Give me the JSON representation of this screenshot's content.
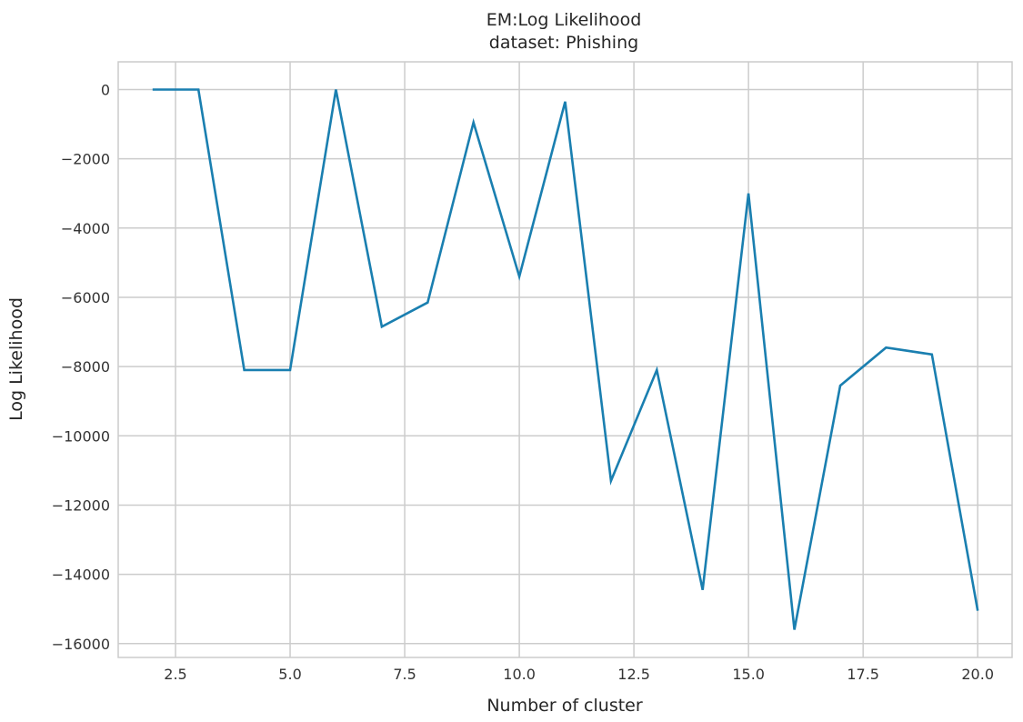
{
  "chart_data": {
    "type": "line",
    "title": "EM:Log Likelihood",
    "subtitle": "dataset: Phishing",
    "xlabel": "Number of cluster",
    "ylabel": "Log Likelihood",
    "xlim": [
      1.25,
      20.75
    ],
    "ylim": [
      -16400,
      800
    ],
    "xticks": [
      2.5,
      5.0,
      7.5,
      10.0,
      12.5,
      15.0,
      17.5,
      20.0
    ],
    "xtick_labels": [
      "2.5",
      "5.0",
      "7.5",
      "10.0",
      "12.5",
      "15.0",
      "17.5",
      "20.0"
    ],
    "yticks": [
      0,
      -2000,
      -4000,
      -6000,
      -8000,
      -10000,
      -12000,
      -14000,
      -16000
    ],
    "ytick_labels": [
      "0",
      "−2000",
      "−4000",
      "−6000",
      "−8000",
      "−10000",
      "−12000",
      "−14000",
      "−16000"
    ],
    "grid": true,
    "line_color": "#1a7fb0",
    "series": [
      {
        "x": [
          2,
          3,
          4,
          5,
          6,
          7,
          8,
          9,
          10,
          11,
          12,
          13,
          14,
          15,
          16,
          17,
          18,
          19,
          20
        ],
        "values": [
          0,
          0,
          -8100,
          -8100,
          0,
          -6850,
          -6150,
          -950,
          -5400,
          -350,
          -11300,
          -8100,
          -14450,
          -3000,
          -15600,
          -8550,
          -7450,
          -7650,
          -15050
        ]
      }
    ]
  }
}
